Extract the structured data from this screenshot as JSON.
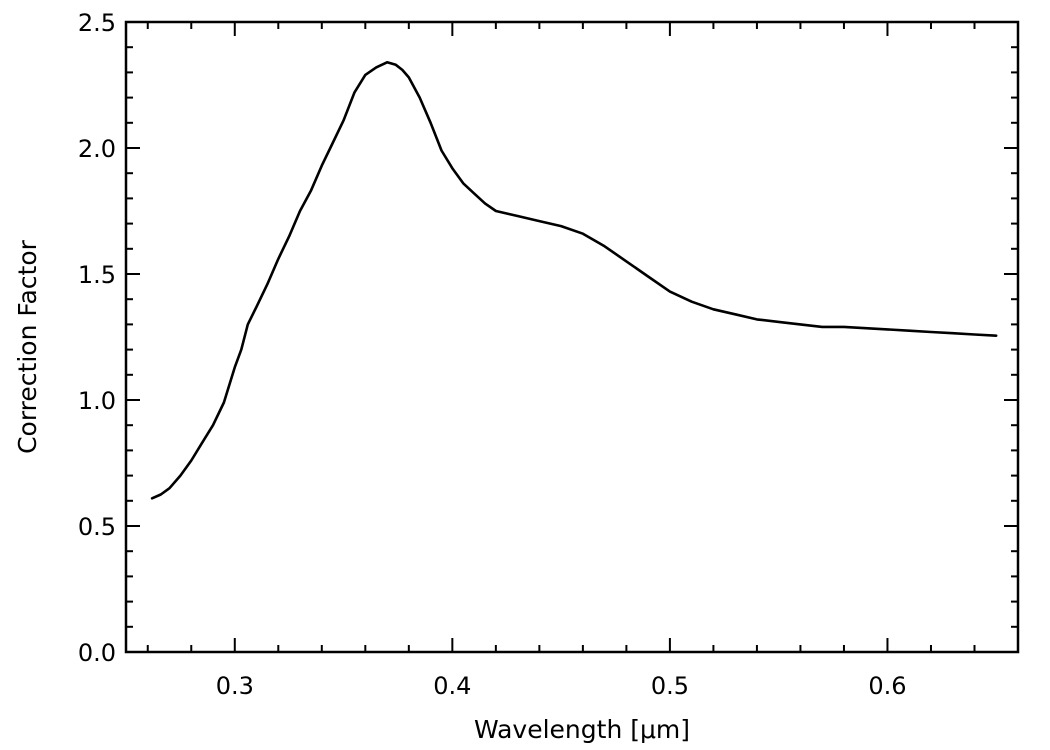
{
  "chart_data": {
    "type": "line",
    "title": "",
    "xlabel": "Wavelength [μm]",
    "ylabel": "Correction Factor",
    "xlim": [
      0.25,
      0.66
    ],
    "ylim": [
      0.0,
      2.5
    ],
    "x_ticks": [
      0.3,
      0.4,
      0.5,
      0.6
    ],
    "x_tick_labels": [
      "0.3",
      "0.4",
      "0.5",
      "0.6"
    ],
    "y_ticks": [
      0.0,
      0.5,
      1.0,
      1.5,
      2.0,
      2.5
    ],
    "y_tick_labels": [
      "0.0",
      "0.5",
      "1.0",
      "1.5",
      "2.0",
      "2.5"
    ],
    "x_minor_step": 0.02,
    "y_minor_step": 0.1,
    "grid": false,
    "legend": "none",
    "series": [
      {
        "color": "#000000",
        "x": [
          0.262,
          0.266,
          0.27,
          0.275,
          0.28,
          0.285,
          0.29,
          0.295,
          0.3,
          0.303,
          0.306,
          0.31,
          0.315,
          0.32,
          0.325,
          0.33,
          0.335,
          0.34,
          0.345,
          0.35,
          0.355,
          0.36,
          0.365,
          0.37,
          0.374,
          0.377,
          0.38,
          0.385,
          0.39,
          0.395,
          0.4,
          0.405,
          0.41,
          0.415,
          0.42,
          0.425,
          0.43,
          0.44,
          0.45,
          0.46,
          0.47,
          0.48,
          0.49,
          0.5,
          0.51,
          0.52,
          0.53,
          0.54,
          0.55,
          0.56,
          0.57,
          0.58,
          0.59,
          0.6,
          0.61,
          0.62,
          0.63,
          0.64,
          0.65
        ],
        "y": [
          0.61,
          0.625,
          0.65,
          0.7,
          0.76,
          0.83,
          0.9,
          0.99,
          1.13,
          1.2,
          1.3,
          1.37,
          1.46,
          1.56,
          1.65,
          1.75,
          1.83,
          1.93,
          2.02,
          2.11,
          2.22,
          2.29,
          2.32,
          2.34,
          2.33,
          2.31,
          2.28,
          2.2,
          2.1,
          1.99,
          1.92,
          1.86,
          1.82,
          1.78,
          1.75,
          1.74,
          1.73,
          1.71,
          1.69,
          1.66,
          1.61,
          1.55,
          1.49,
          1.43,
          1.39,
          1.36,
          1.34,
          1.32,
          1.31,
          1.3,
          1.29,
          1.29,
          1.285,
          1.28,
          1.275,
          1.27,
          1.265,
          1.26,
          1.255
        ]
      }
    ]
  }
}
